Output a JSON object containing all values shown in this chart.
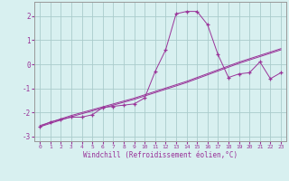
{
  "xlabel": "Windchill (Refroidissement éolien,°C)",
  "background_color": "#d8f0f0",
  "line_color": "#993399",
  "grid_color": "#aacccc",
  "x_data": [
    0,
    1,
    2,
    3,
    4,
    5,
    6,
    7,
    8,
    9,
    10,
    11,
    12,
    13,
    14,
    15,
    16,
    17,
    18,
    19,
    20,
    21,
    22,
    23
  ],
  "y_main": [
    -2.6,
    -2.4,
    -2.3,
    -2.2,
    -2.2,
    -2.1,
    -1.8,
    -1.75,
    -1.7,
    -1.65,
    -1.4,
    -0.3,
    0.6,
    2.1,
    2.2,
    2.2,
    1.65,
    0.4,
    -0.55,
    -0.4,
    -0.35,
    0.1,
    -0.6,
    -0.35
  ],
  "y_line1": [
    -2.6,
    -2.46,
    -2.32,
    -2.18,
    -2.06,
    -1.94,
    -1.82,
    -1.7,
    -1.58,
    -1.46,
    -1.32,
    -1.18,
    -1.04,
    -0.9,
    -0.76,
    -0.6,
    -0.44,
    -0.28,
    -0.12,
    0.04,
    0.18,
    0.32,
    0.46,
    0.6
  ],
  "y_line2": [
    -2.55,
    -2.41,
    -2.27,
    -2.13,
    -2.01,
    -1.89,
    -1.77,
    -1.65,
    -1.53,
    -1.41,
    -1.27,
    -1.13,
    -0.99,
    -0.85,
    -0.71,
    -0.55,
    -0.39,
    -0.23,
    -0.07,
    0.09,
    0.23,
    0.37,
    0.51,
    0.65
  ],
  "ylim": [
    -3.2,
    2.6
  ],
  "xlim": [
    -0.5,
    23.5
  ],
  "yticks": [
    -3,
    -2,
    -1,
    0,
    1,
    2
  ],
  "xticks": [
    0,
    1,
    2,
    3,
    4,
    5,
    6,
    7,
    8,
    9,
    10,
    11,
    12,
    13,
    14,
    15,
    16,
    17,
    18,
    19,
    20,
    21,
    22,
    23
  ]
}
